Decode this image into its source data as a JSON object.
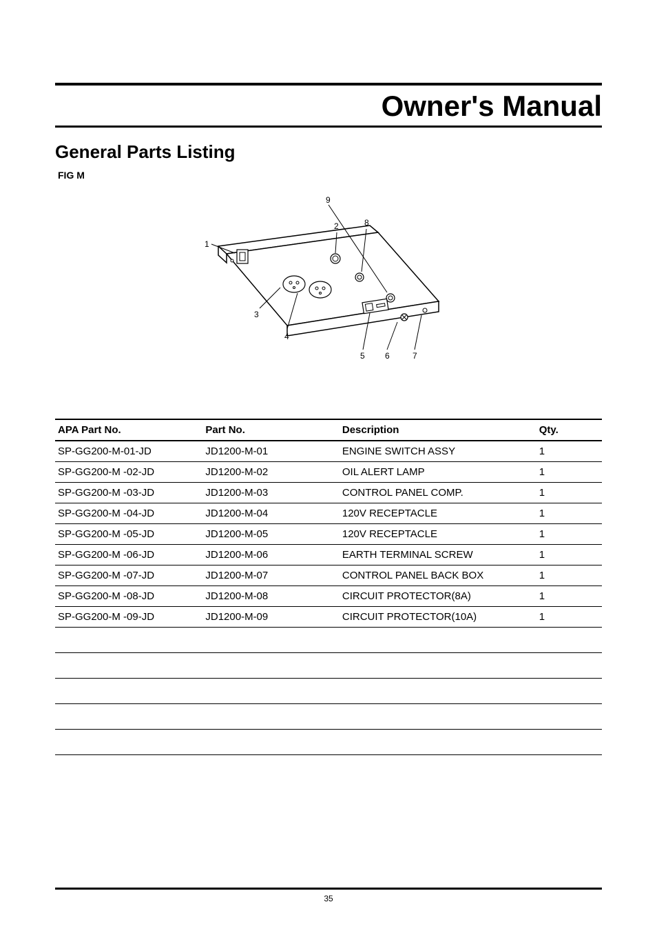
{
  "document": {
    "title": "Owner's Manual",
    "section_title": "General Parts Listing",
    "fig_label": "FIG M",
    "page_number": "35"
  },
  "diagram": {
    "callouts": [
      "1",
      "2",
      "3",
      "4",
      "5",
      "6",
      "7",
      "8",
      "9"
    ],
    "callout_fontsize": 12,
    "color": "#000000"
  },
  "table": {
    "columns": [
      {
        "key": "apa",
        "label": "APA Part No.",
        "width": "27%"
      },
      {
        "key": "part",
        "label": "Part No.",
        "width": "25%"
      },
      {
        "key": "desc",
        "label": "Description",
        "width": "36%"
      },
      {
        "key": "qty",
        "label": "Qty.",
        "width": "12%"
      }
    ],
    "rows": [
      {
        "apa": "SP-GG200-M-01-JD",
        "part": "JD1200-M-01",
        "desc": "ENGINE SWITCH ASSY",
        "qty": "1"
      },
      {
        "apa": "SP-GG200-M -02-JD",
        "part": "JD1200-M-02",
        "desc": "OIL ALERT LAMP",
        "qty": "1"
      },
      {
        "apa": "SP-GG200-M -03-JD",
        "part": "JD1200-M-03",
        "desc": "CONTROL PANEL COMP.",
        "qty": "1"
      },
      {
        "apa": "SP-GG200-M -04-JD",
        "part": "JD1200-M-04",
        "desc": "120V RECEPTACLE",
        "qty": "1"
      },
      {
        "apa": "SP-GG200-M -05-JD",
        "part": "JD1200-M-05",
        "desc": "120V RECEPTACLE",
        "qty": "1"
      },
      {
        "apa": "SP-GG200-M -06-JD",
        "part": "JD1200-M-06",
        "desc": "EARTH TERMINAL SCREW",
        "qty": "1"
      },
      {
        "apa": "SP-GG200-M -07-JD",
        "part": "JD1200-M-07",
        "desc": "CONTROL PANEL BACK BOX",
        "qty": "1"
      },
      {
        "apa": "SP-GG200-M -08-JD",
        "part": "JD1200-M-08",
        "desc": "CIRCUIT PROTECTOR(8A)",
        "qty": "1"
      },
      {
        "apa": "SP-GG200-M -09-JD",
        "part": "JD1200-M-09",
        "desc": "CIRCUIT PROTECTOR(10A)",
        "qty": "1"
      }
    ],
    "blank_rows": 5,
    "header_border_color": "#000000",
    "row_border_color": "#000000",
    "fontsize": 15
  }
}
